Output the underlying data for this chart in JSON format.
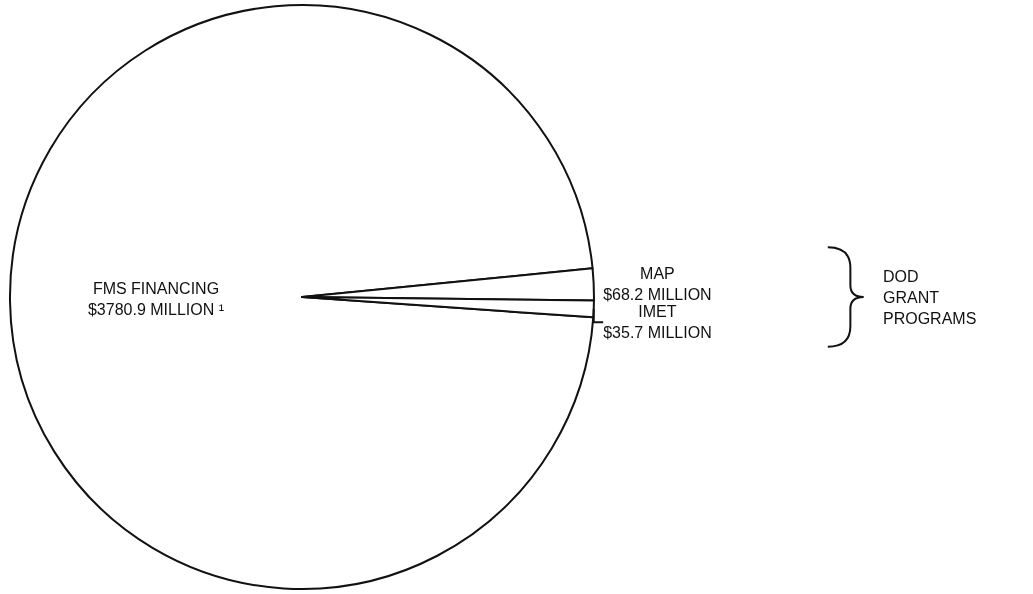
{
  "chart_data": {
    "type": "pie",
    "categories": [
      "FMS FINANCING",
      "MAP",
      "IMET"
    ],
    "values": [
      3780.9,
      68.2,
      35.7
    ],
    "colors": [
      "#ffffff",
      "#ffffff",
      "#ffffff"
    ],
    "value_labels": [
      "$3780.9 MILLION ¹",
      "$68.2 MILLION",
      "$35.7 MILLION"
    ],
    "annotations": [
      "DOD\nGRANT\nPROGRAMS"
    ]
  }
}
